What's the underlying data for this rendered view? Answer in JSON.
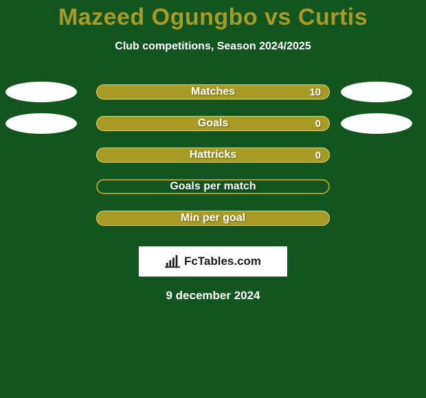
{
  "background_color": "#12551f",
  "title": "Mazeed Ogungbo vs Curtis",
  "title_color": "#a79b26",
  "subtitle": "Club competitions, Season 2024/2025",
  "subtitle_color": "#ffffff",
  "text_shadow_color": "rgba(0,0,0,0.35)",
  "stats": {
    "type": "bar",
    "bar_color": "#a79b26",
    "bar_border_color": "#e2d778",
    "label_color": "#ffffff",
    "value_color": "#ffffff",
    "ellipse_color": "#ffffff",
    "hollow_border_color": "#a79b26",
    "rows": [
      {
        "label": "Matches",
        "value": "10",
        "left_ellipse": true,
        "right_ellipse": true,
        "hollow": false
      },
      {
        "label": "Goals",
        "value": "0",
        "left_ellipse": true,
        "right_ellipse": true,
        "hollow": false
      },
      {
        "label": "Hattricks",
        "value": "0",
        "left_ellipse": false,
        "right_ellipse": false,
        "hollow": false
      },
      {
        "label": "Goals per match",
        "value": "",
        "left_ellipse": false,
        "right_ellipse": false,
        "hollow": true
      },
      {
        "label": "Min per goal",
        "value": "",
        "left_ellipse": false,
        "right_ellipse": false,
        "hollow": false
      }
    ]
  },
  "logo": {
    "box_background": "#ffffff",
    "text": "FcTables.com",
    "text_color": "#1a1a1a",
    "icon_color": "#1a1a1a"
  },
  "date": "9 december 2024",
  "date_color": "#ffffff"
}
